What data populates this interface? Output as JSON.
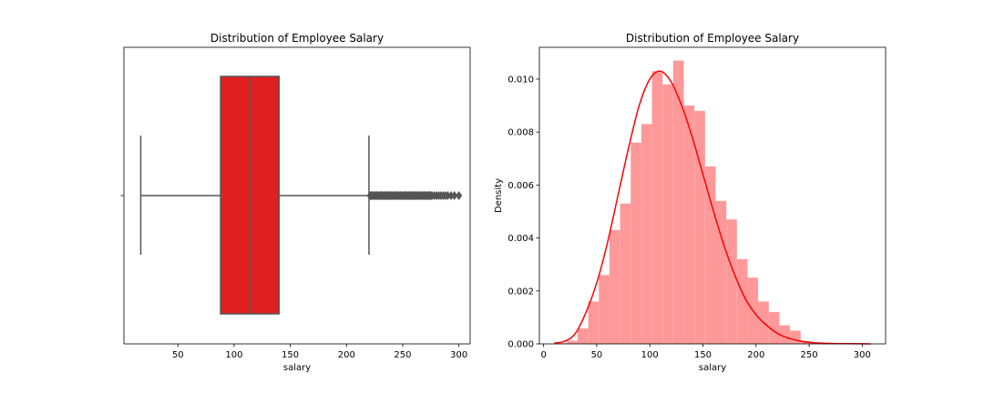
{
  "chart_data": [
    {
      "type": "box",
      "title": "Distribution of Employee Salary",
      "xlabel": "salary",
      "ylabel": "",
      "xlim": [
        2,
        310
      ],
      "x_ticks": [
        50,
        100,
        150,
        200,
        250,
        300
      ],
      "grid": false,
      "box": {
        "whisker_low": 17,
        "q1": 88,
        "median": 114,
        "q3": 140,
        "whisker_high": 220,
        "color": "#e02020",
        "outliers": [
          221,
          222,
          223,
          224,
          225,
          226,
          227,
          228,
          229,
          230,
          231,
          232,
          233,
          234,
          235,
          236,
          237,
          238,
          239,
          240,
          241,
          242,
          243,
          244,
          245,
          246,
          247,
          248,
          249,
          250,
          251,
          252,
          253,
          254,
          255,
          256,
          257,
          258,
          259,
          260,
          261,
          262,
          263,
          264,
          265,
          266,
          267,
          268,
          269,
          270,
          271,
          272,
          273,
          274,
          275,
          276,
          278,
          280,
          282,
          284,
          286,
          288,
          290,
          293,
          296,
          300
        ]
      }
    },
    {
      "type": "histogram",
      "title": "Distribution of Employee Salary",
      "xlabel": "salary",
      "ylabel": "Density",
      "xlim": [
        -4,
        322
      ],
      "ylim": [
        0,
        0.0112
      ],
      "x_ticks": [
        0,
        50,
        100,
        150,
        200,
        250,
        300
      ],
      "y_ticks": [
        "0.000",
        "0.002",
        "0.004",
        "0.006",
        "0.008",
        "0.010"
      ],
      "grid": false,
      "bar_color": "#ff9999",
      "kde_color": "#ff0000",
      "bins": [
        {
          "x0": 12,
          "x1": 22,
          "density": 3e-05
        },
        {
          "x0": 22,
          "x1": 32,
          "density": 0.00012
        },
        {
          "x0": 32,
          "x1": 42,
          "density": 0.00058
        },
        {
          "x0": 42,
          "x1": 52,
          "density": 0.0016
        },
        {
          "x0": 52,
          "x1": 62,
          "density": 0.0026
        },
        {
          "x0": 62,
          "x1": 72,
          "density": 0.0043
        },
        {
          "x0": 72,
          "x1": 82,
          "density": 0.0053
        },
        {
          "x0": 82,
          "x1": 92,
          "density": 0.0076
        },
        {
          "x0": 92,
          "x1": 102,
          "density": 0.0083
        },
        {
          "x0": 102,
          "x1": 112,
          "density": 0.0103
        },
        {
          "x0": 112,
          "x1": 122,
          "density": 0.0098
        },
        {
          "x0": 122,
          "x1": 132,
          "density": 0.0107
        },
        {
          "x0": 132,
          "x1": 142,
          "density": 0.009
        },
        {
          "x0": 142,
          "x1": 152,
          "density": 0.0088
        },
        {
          "x0": 152,
          "x1": 162,
          "density": 0.0067
        },
        {
          "x0": 162,
          "x1": 172,
          "density": 0.0054
        },
        {
          "x0": 172,
          "x1": 182,
          "density": 0.0047
        },
        {
          "x0": 182,
          "x1": 192,
          "density": 0.0032
        },
        {
          "x0": 192,
          "x1": 202,
          "density": 0.0025
        },
        {
          "x0": 202,
          "x1": 212,
          "density": 0.0016
        },
        {
          "x0": 212,
          "x1": 222,
          "density": 0.0012
        },
        {
          "x0": 222,
          "x1": 232,
          "density": 0.0007
        },
        {
          "x0": 232,
          "x1": 242,
          "density": 0.0005
        },
        {
          "x0": 242,
          "x1": 252,
          "density": 0.0001
        },
        {
          "x0": 252,
          "x1": 262,
          "density": 5e-05
        }
      ],
      "kde": {
        "x": [
          10,
          20,
          30,
          40,
          50,
          60,
          70,
          80,
          90,
          100,
          110,
          120,
          130,
          140,
          150,
          160,
          170,
          180,
          190,
          200,
          210,
          220,
          230,
          240,
          250,
          260,
          280,
          300,
          308
        ],
        "y": [
          3e-05,
          0.0001,
          0.0004,
          0.0012,
          0.0023,
          0.0038,
          0.0056,
          0.0074,
          0.009,
          0.01,
          0.0103,
          0.0099,
          0.009,
          0.0078,
          0.0064,
          0.005,
          0.0037,
          0.0026,
          0.0017,
          0.0011,
          0.0007,
          0.0004,
          0.00022,
          0.00012,
          6e-05,
          3e-05,
          1e-05,
          3e-06,
          0.0
        ]
      }
    }
  ]
}
